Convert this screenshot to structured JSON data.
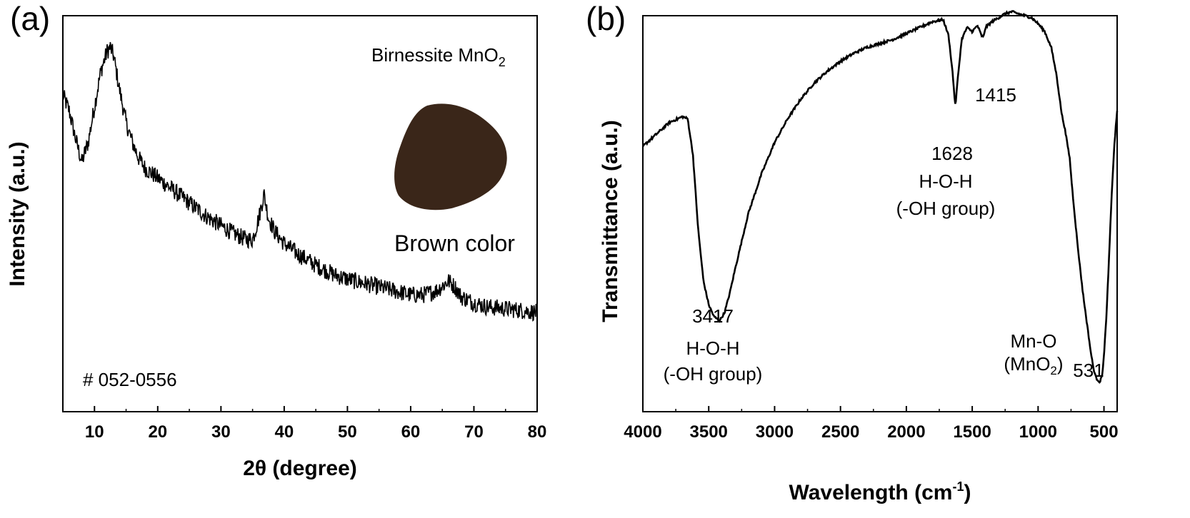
{
  "chart_data": [
    {
      "panel": "(a)",
      "type": "line",
      "xlabel": "2θ (degree)",
      "ylabel": "Intensity (a.u.)",
      "xlim": [
        5,
        80
      ],
      "ylim": [
        0,
        10
      ],
      "x_ticks": [
        10,
        20,
        30,
        40,
        50,
        60,
        70,
        80
      ],
      "y_ticks_labeled": false,
      "grid": false,
      "annotations": {
        "top": "Birnessite MnO",
        "top_sub": "2",
        "photo_caption": "Brown color",
        "reference": "# 052-0556"
      },
      "photo_color": "#3a2619",
      "line_color": "#000000",
      "series": [
        {
          "x": [
            5,
            6,
            7,
            8,
            9,
            10,
            11,
            12,
            12.5,
            13,
            14,
            15,
            16,
            17,
            18,
            20,
            22,
            24,
            26,
            28,
            30,
            32,
            34,
            35,
            36,
            36.8,
            37.5,
            38.5,
            40,
            42,
            45,
            48,
            50,
            55,
            60,
            62,
            64,
            66,
            67,
            68,
            70,
            72,
            75,
            78,
            80
          ],
          "y": [
            8.0,
            7.6,
            6.9,
            6.3,
            6.8,
            7.7,
            8.6,
            9.1,
            9.2,
            9.0,
            8.1,
            7.3,
            6.8,
            6.4,
            6.15,
            5.9,
            5.65,
            5.4,
            5.15,
            4.9,
            4.7,
            4.5,
            4.35,
            4.35,
            4.9,
            5.5,
            4.9,
            4.55,
            4.25,
            4.0,
            3.7,
            3.45,
            3.35,
            3.15,
            2.95,
            2.95,
            3.05,
            3.3,
            3.15,
            2.9,
            2.75,
            2.65,
            2.6,
            2.55,
            2.5
          ]
        }
      ]
    },
    {
      "panel": "(b)",
      "type": "line",
      "xlabel": "Wavelength (cm",
      "xlabel_sup": "-1",
      "xlabel_end": ")",
      "ylabel": "Transmittance (a.u.)",
      "xlim": [
        4000,
        400
      ],
      "ylim": [
        0,
        10
      ],
      "x_ticks": [
        4000,
        3500,
        3000,
        2500,
        2000,
        1500,
        1000,
        500
      ],
      "y_ticks_labeled": false,
      "grid": false,
      "annotations": {
        "peak_3417": "3417",
        "peak_3417_a": "H-O-H",
        "peak_3417_b": "(-OH group)",
        "peak_1628": "1628",
        "peak_1628_a": "H-O-H",
        "peak_1628_b": "(-OH group)",
        "peak_1415": "1415",
        "peak_531_a": "Mn-O",
        "peak_531_b": "(MnO",
        "peak_531_b_sub": "2",
        "peak_531_b_end": ")",
        "peak_531": "531"
      },
      "line_color": "#000000",
      "series": [
        {
          "x": [
            4000,
            3900,
            3800,
            3700,
            3660,
            3620,
            3580,
            3540,
            3500,
            3460,
            3417,
            3380,
            3340,
            3300,
            3250,
            3200,
            3100,
            3000,
            2900,
            2800,
            2700,
            2600,
            2500,
            2400,
            2300,
            2200,
            2100,
            2000,
            1900,
            1800,
            1720,
            1680,
            1650,
            1628,
            1610,
            1580,
            1540,
            1500,
            1460,
            1430,
            1415,
            1400,
            1350,
            1300,
            1250,
            1200,
            1150,
            1100,
            1050,
            1000,
            950,
            900,
            860,
            820,
            800,
            780,
            760,
            740,
            700,
            660,
            620,
            600,
            580,
            560,
            545,
            531,
            515,
            500,
            480,
            460,
            440,
            420,
            400
          ],
          "y": [
            6.7,
            7.0,
            7.3,
            7.45,
            7.4,
            6.5,
            4.6,
            3.3,
            2.7,
            2.4,
            2.3,
            2.5,
            3.0,
            3.6,
            4.3,
            5.0,
            6.0,
            6.8,
            7.4,
            7.9,
            8.3,
            8.6,
            8.85,
            9.05,
            9.2,
            9.3,
            9.4,
            9.55,
            9.7,
            9.85,
            9.9,
            9.5,
            8.6,
            7.7,
            8.4,
            9.4,
            9.7,
            9.6,
            9.75,
            9.5,
            9.45,
            9.7,
            9.85,
            9.95,
            10.05,
            10.1,
            10.05,
            10.0,
            9.95,
            9.8,
            9.6,
            9.2,
            8.5,
            7.5,
            7.2,
            6.8,
            6.4,
            5.6,
            4.2,
            3.0,
            2.0,
            1.5,
            1.1,
            0.85,
            0.8,
            0.75,
            0.9,
            1.4,
            2.5,
            4.0,
            5.6,
            6.8,
            7.6
          ]
        }
      ]
    }
  ]
}
